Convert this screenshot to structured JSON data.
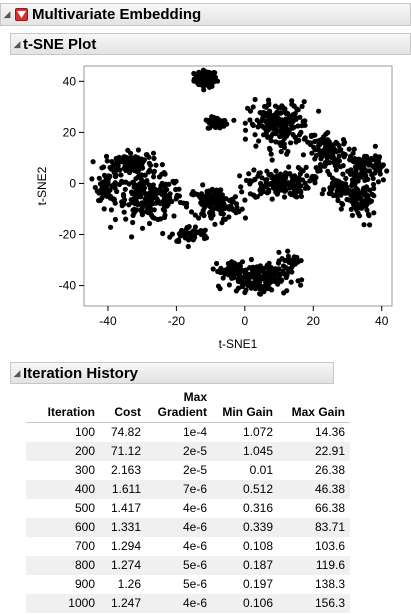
{
  "report": {
    "title": "Multivariate Embedding",
    "plot_section_title": "t-SNE Plot",
    "history_section_title": "Iteration History"
  },
  "chart_data": {
    "type": "scatter",
    "xlabel": "t-SNE1",
    "ylabel": "t-SNE2",
    "xlim": [
      -47,
      43
    ],
    "ylim": [
      -48,
      46
    ],
    "x_ticks": [
      -40,
      -20,
      0,
      20,
      40
    ],
    "y_ticks": [
      -40,
      -20,
      0,
      20,
      40
    ],
    "x_tick_labels": [
      "-40",
      "-20",
      "0",
      "20",
      "40"
    ],
    "y_tick_labels": [
      "-40",
      "-20",
      "0",
      "20",
      "40"
    ],
    "grid": false,
    "point_color": "#000000",
    "clusters": [
      {
        "center": [
          -11.5,
          41
        ],
        "spread": [
          3,
          3
        ],
        "count": 80
      },
      {
        "center": [
          -8,
          23.5
        ],
        "spread": [
          2.6,
          2.2
        ],
        "count": 45
      },
      {
        "center": [
          -34,
          8
        ],
        "spread": [
          6.5,
          4
        ],
        "count": 120
      },
      {
        "center": [
          -28,
          -6
        ],
        "spread": [
          9,
          8
        ],
        "count": 200
      },
      {
        "center": [
          -40,
          -1
        ],
        "spread": [
          3,
          5
        ],
        "count": 60
      },
      {
        "center": [
          -9,
          -8
        ],
        "spread": [
          7,
          6
        ],
        "count": 140
      },
      {
        "center": [
          -16,
          -20
        ],
        "spread": [
          5,
          3
        ],
        "count": 50
      },
      {
        "center": [
          10,
          0
        ],
        "spread": [
          8,
          5
        ],
        "count": 150
      },
      {
        "center": [
          10,
          23
        ],
        "spread": [
          8,
          8
        ],
        "count": 200
      },
      {
        "center": [
          25,
          12
        ],
        "spread": [
          6,
          6
        ],
        "count": 110
      },
      {
        "center": [
          35,
          6
        ],
        "spread": [
          5,
          6
        ],
        "count": 90
      },
      {
        "center": [
          34,
          -8
        ],
        "spread": [
          4,
          6
        ],
        "count": 70
      },
      {
        "center": [
          28,
          -2
        ],
        "spread": [
          4,
          4
        ],
        "count": 60
      },
      {
        "center": [
          4,
          -37
        ],
        "spread": [
          8,
          5
        ],
        "count": 180
      },
      {
        "center": [
          -4,
          -34
        ],
        "spread": [
          3,
          3
        ],
        "count": 40
      },
      {
        "center": [
          14,
          -30
        ],
        "spread": [
          3,
          3
        ],
        "count": 30
      }
    ]
  },
  "iteration_history": {
    "columns": [
      "Iteration",
      "Cost",
      "Max Gradient",
      "Min Gain",
      "Max Gain"
    ],
    "rows": [
      [
        "100",
        "74.82",
        "1e-4",
        "1.072",
        "14.36"
      ],
      [
        "200",
        "71.12",
        "2e-5",
        "1.045",
        "22.91"
      ],
      [
        "300",
        "2.163",
        "2e-5",
        "0.01",
        "26.38"
      ],
      [
        "400",
        "1.611",
        "7e-6",
        "0.512",
        "46.38"
      ],
      [
        "500",
        "1.417",
        "4e-6",
        "0.316",
        "66.38"
      ],
      [
        "600",
        "1.331",
        "4e-6",
        "0.339",
        "83.71"
      ],
      [
        "700",
        "1.294",
        "4e-6",
        "0.108",
        "103.6"
      ],
      [
        "800",
        "1.274",
        "5e-6",
        "0.187",
        "119.6"
      ],
      [
        "900",
        "1.26",
        "5e-6",
        "0.197",
        "138.3"
      ],
      [
        "1000",
        "1.247",
        "4e-6",
        "0.106",
        "156.3"
      ]
    ]
  },
  "colors": {
    "red_menu": "#d63030",
    "header_bg": "#e8e8e8",
    "alt_row": "#f0f0f0"
  },
  "icons": {
    "disclosure": "disclosure-triangle-icon",
    "menu": "red-triangle-menu-icon"
  }
}
